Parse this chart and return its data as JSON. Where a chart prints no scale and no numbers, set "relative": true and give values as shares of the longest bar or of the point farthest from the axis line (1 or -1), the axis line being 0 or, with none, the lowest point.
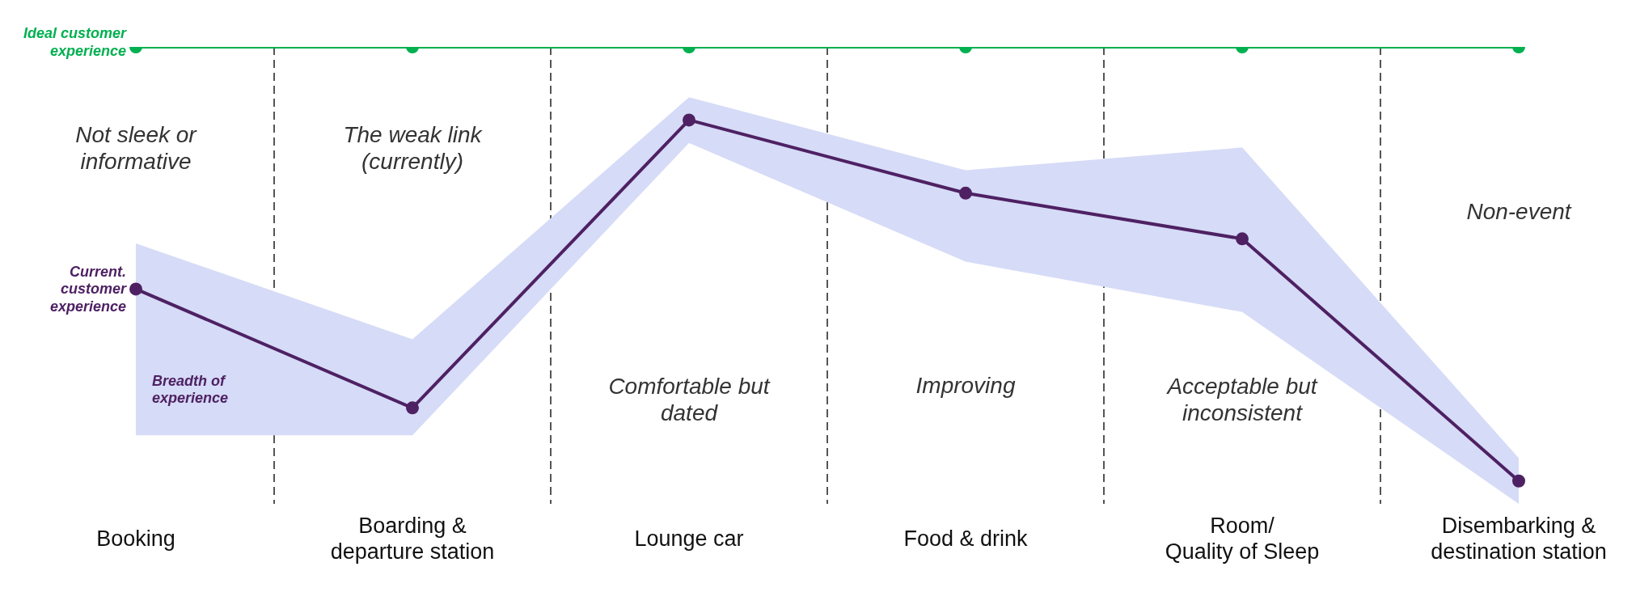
{
  "chart_data": {
    "type": "line",
    "relative": true,
    "categories": [
      "Booking",
      "Boarding &\ndeparture station",
      "Lounge car",
      "Food & drink",
      "Room/\nQuality of Sleep",
      "Disembarking &\ndestination station"
    ],
    "series": [
      {
        "name": "Ideal customer\nexperience",
        "color": "#00b050",
        "values": [
          1,
          1,
          1,
          1,
          1,
          1
        ]
      },
      {
        "name": "Current.\ncustomer\nexperience",
        "color": "#4e2163",
        "values": [
          0.47,
          0.21,
          0.84,
          0.68,
          0.58,
          0.05
        ],
        "lower": [
          0.15,
          0.15,
          0.79,
          0.53,
          0.42,
          0
        ],
        "upper": [
          0.57,
          0.36,
          0.89,
          0.73,
          0.78,
          0.1
        ]
      }
    ],
    "annotations": [
      "Not sleek or\ninformative",
      "The weak link\n(currently)",
      "Comfortable but\ndated",
      "Improving",
      "Acceptable but\ninconsistent",
      "Non-event",
      {
        "text": "Breadth of\nexperience",
        "x": "Booking",
        "y": 0.25
      }
    ],
    "grid": "x",
    "marker": "circle",
    "line_style": "solid"
  }
}
